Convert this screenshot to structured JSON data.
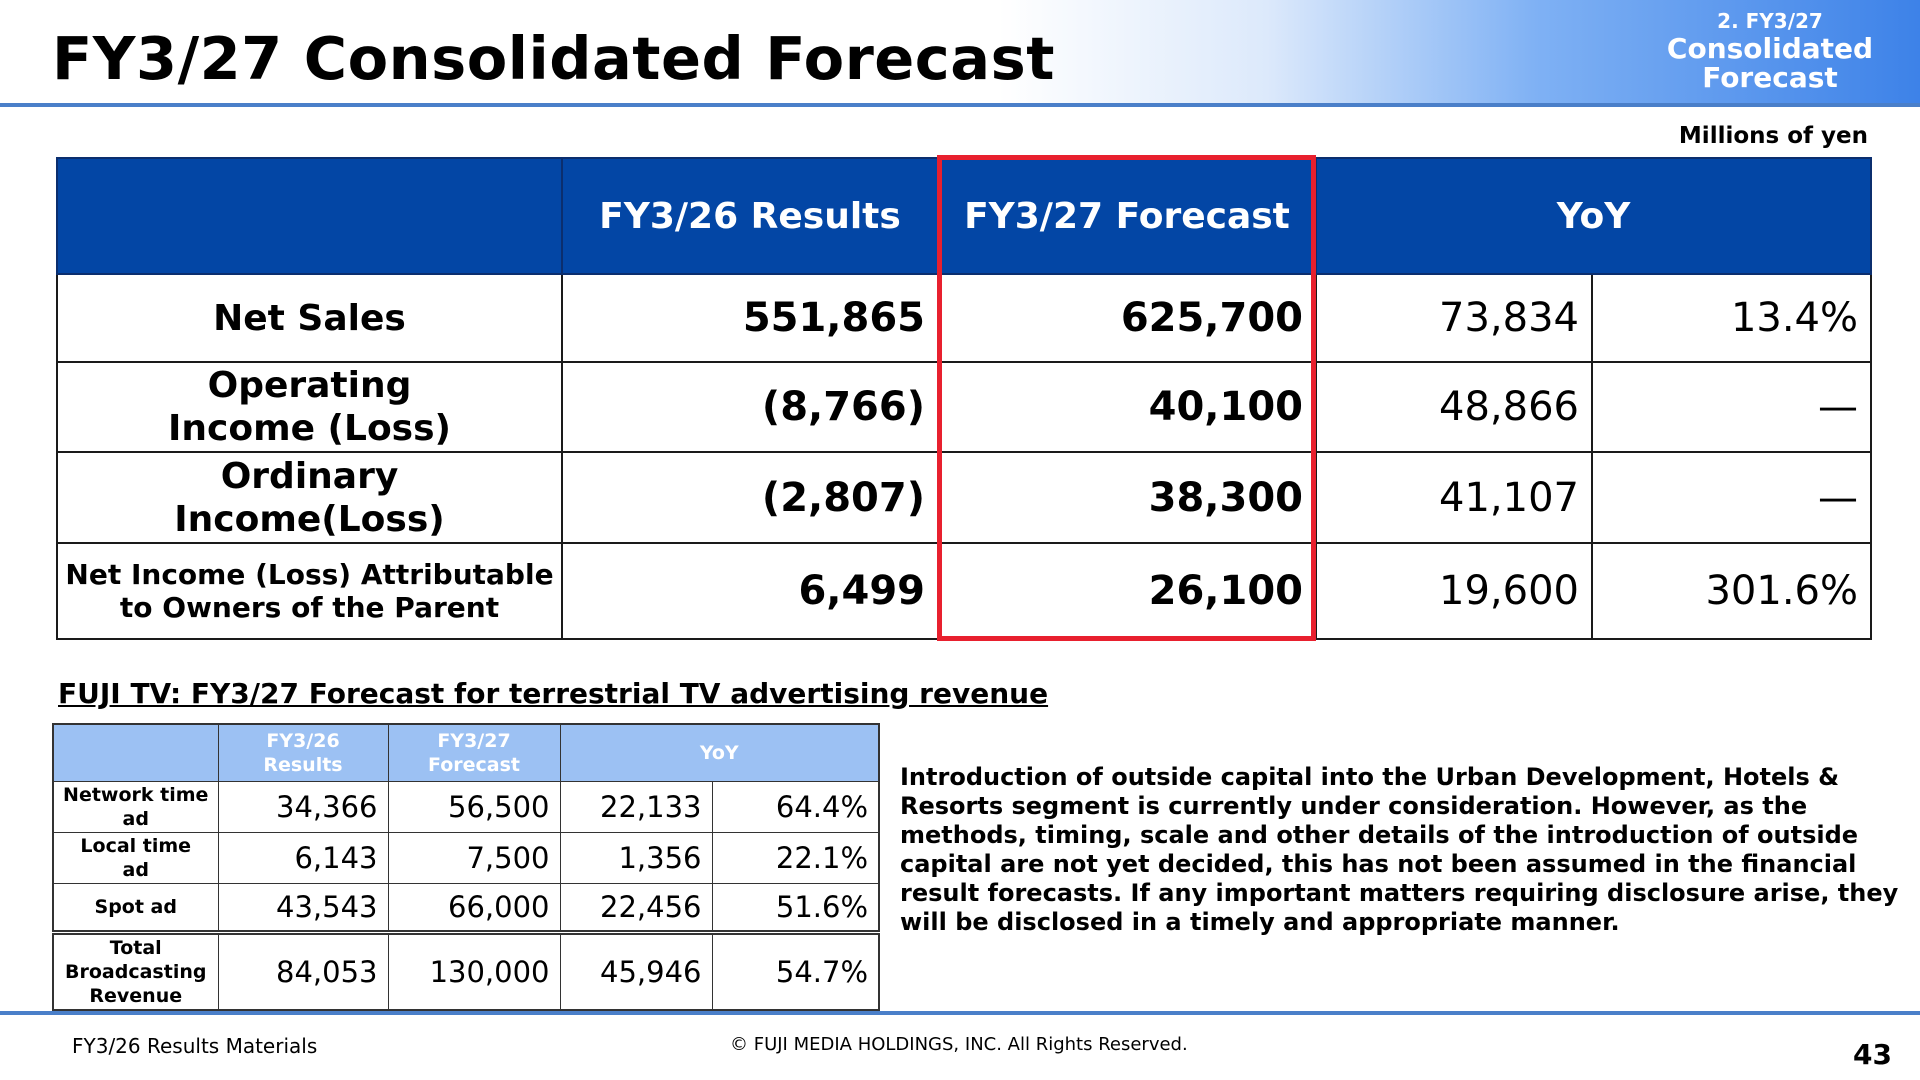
{
  "header": {
    "title": "FY3/27 Consolidated Forecast",
    "section_number": "2. FY3/27",
    "section_name_line1": "Consolidated",
    "section_name_line2": "Forecast"
  },
  "units": "Millions of yen",
  "main_table": {
    "columns": [
      "",
      "FY3/26 Results",
      "FY3/27 Forecast",
      "YoY"
    ],
    "rows": [
      {
        "label": "Net Sales",
        "results": "551,865",
        "forecast": "625,700",
        "yoy_amount": "73,834",
        "yoy_pct": "13.4%"
      },
      {
        "label_line1": "Operating",
        "label_line2": "Income (Loss)",
        "results": "(8,766)",
        "forecast": "40,100",
        "yoy_amount": "48,866",
        "yoy_pct": "—"
      },
      {
        "label_line1": "Ordinary",
        "label_line2": "Income(Loss)",
        "results": "(2,807)",
        "forecast": "38,300",
        "yoy_amount": "41,107",
        "yoy_pct": "—"
      },
      {
        "label_line1": "Net Income (Loss) Attributable",
        "label_line2": "to Owners of the Parent",
        "results": "6,499",
        "forecast": "26,100",
        "yoy_amount": "19,600",
        "yoy_pct": "301.6%"
      }
    ]
  },
  "sub_section": {
    "heading": "FUJI TV: FY3/27 Forecast for terrestrial TV advertising revenue",
    "columns": [
      {
        "line1": "FY3/26",
        "line2": "Results"
      },
      {
        "line1": "FY3/27",
        "line2": "Forecast"
      },
      {
        "line1": "YoY",
        "line2": ""
      }
    ],
    "rows": [
      {
        "label_line1": "Network time",
        "label_line2": "ad",
        "label_line3": "",
        "results": "34,366",
        "forecast": "56,500",
        "yoy_amount": "22,133",
        "yoy_pct": "64.4%"
      },
      {
        "label_line1": "Local time",
        "label_line2": "ad",
        "label_line3": "",
        "results": "6,143",
        "forecast": "7,500",
        "yoy_amount": "1,356",
        "yoy_pct": "22.1%"
      },
      {
        "label_line1": "Spot ad",
        "label_line2": "",
        "label_line3": "",
        "results": "43,543",
        "forecast": "66,000",
        "yoy_amount": "22,456",
        "yoy_pct": "51.6%"
      },
      {
        "label_line1": "Total",
        "label_line2": "Broadcasting",
        "label_line3": "Revenue",
        "results": "84,053",
        "forecast": "130,000",
        "yoy_amount": "45,946",
        "yoy_pct": "54.7%"
      }
    ]
  },
  "note": "Introduction of outside capital into the Urban Development, Hotels & Resorts segment is currently under consideration. However, as the methods, timing, scale and other details of the introduction of outside capital are not yet decided, this has not been assumed in the financial result forecasts. If any important matters requiring disclosure arise, they will be disclosed in a timely and appropriate manner.",
  "footer": {
    "left": "FY3/26 Results Materials",
    "center": "© FUJI MEDIA HOLDINGS, INC. All Rights Reserved.",
    "page_number": "43"
  }
}
